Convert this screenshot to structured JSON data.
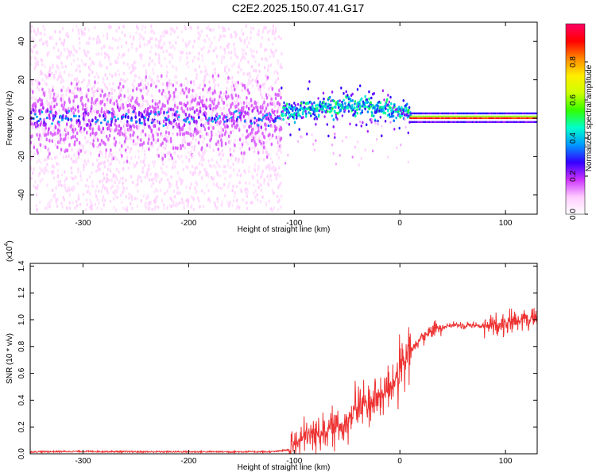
{
  "title": "C2E2.2025.150.07.41.G17",
  "chart_data": [
    {
      "type": "heatmap",
      "description_axis": "top spectrogram",
      "xlabel": "Height of straight line (km)",
      "ylabel": "Frequency (Hz)",
      "xlim": [
        -350,
        130
      ],
      "ylim": [
        -50,
        50
      ],
      "xticks": [
        -300,
        -200,
        -100,
        0,
        100
      ],
      "yticks": [
        -40,
        -20,
        0,
        20,
        40
      ],
      "colorbar": {
        "label": "Normalized spectral amplitude",
        "range": [
          0,
          1
        ],
        "ticks": [
          "0.0",
          "0.2",
          "0.4",
          "0.6",
          "0.8"
        ],
        "colormap": [
          "#ffffff",
          "#ffccff",
          "#cc33ff",
          "#3300ff",
          "#0099ff",
          "#00ffcc",
          "#33ff00",
          "#ccff00",
          "#ffee00",
          "#ff8800",
          "#ff0000",
          "#ff0066"
        ]
      },
      "regions": [
        {
          "x_range": [
            -350,
            -112
          ],
          "spread_hz": 48,
          "core_hz": 10,
          "core_amplitude": 0.25
        },
        {
          "x_range": [
            -112,
            10
          ],
          "center_hz_start": 0,
          "center_hz_peak": 5,
          "core_amplitude": 0.5
        },
        {
          "x_range": [
            10,
            130
          ],
          "center_hz": 0,
          "core_amplitude": 0.95
        }
      ]
    },
    {
      "type": "line",
      "xlabel": "Height of straight line (km)",
      "ylabel": "SNR (10 * v/v)",
      "y_multiplier": "(x10",
      "y_multiplier_exp": "4",
      "xlim": [
        -350,
        130
      ],
      "ylim": [
        0,
        1.42
      ],
      "xticks": [
        -300,
        -200,
        -100,
        0,
        100
      ],
      "yticks": [
        "0.0",
        "0.2",
        "0.4",
        "0.6",
        "0.8",
        "1.0",
        "1.2",
        "1.4"
      ],
      "color": "#ee3333",
      "series": [
        {
          "x": [
            -350,
            -300,
            -250,
            -200,
            -150,
            -120,
            -105,
            -100,
            -90,
            -80,
            -70,
            -60,
            -50,
            -40,
            -30,
            -20,
            -10,
            0,
            10,
            20,
            30,
            40,
            50,
            60,
            70,
            80,
            90,
            100,
            110,
            120,
            130
          ],
          "values": [
            0.015,
            0.018,
            0.015,
            0.015,
            0.015,
            0.015,
            0.03,
            0.07,
            0.12,
            0.15,
            0.18,
            0.2,
            0.24,
            0.35,
            0.38,
            0.43,
            0.5,
            0.6,
            0.76,
            0.86,
            0.92,
            0.95,
            0.96,
            0.96,
            0.96,
            0.95,
            0.96,
            0.98,
            1.0,
            1.02,
            1.0
          ]
        }
      ]
    }
  ]
}
